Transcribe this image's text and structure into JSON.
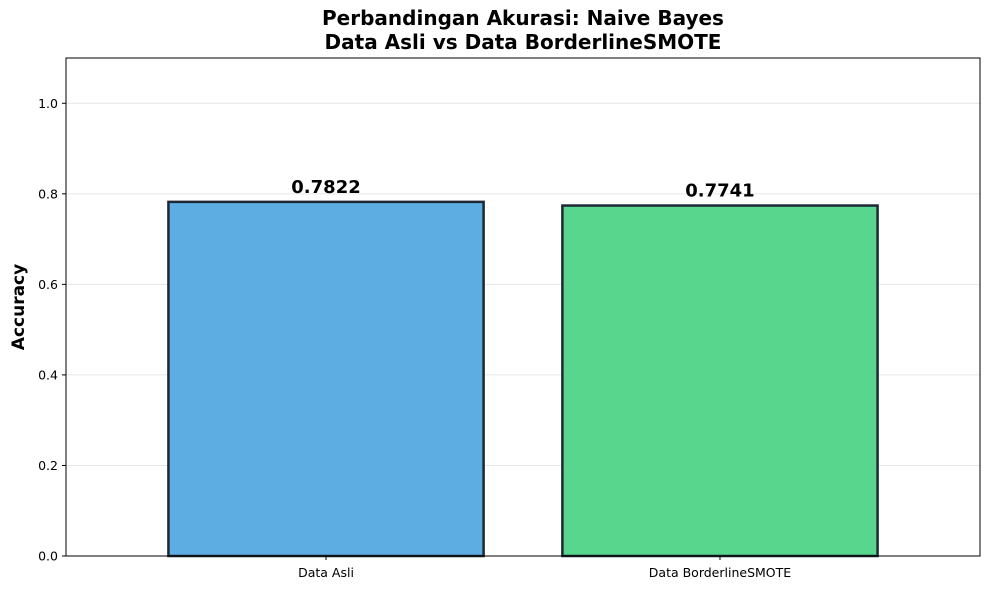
{
  "chart_data": {
    "type": "bar",
    "title_lines": [
      "Perbandingan Akurasi: Naive Bayes",
      "Data Asli vs Data BorderlineSMOTE"
    ],
    "xlabel": "",
    "ylabel": "Accuracy",
    "categories": [
      "Data Asli",
      "Data BorderlineSMOTE"
    ],
    "values": [
      0.7822,
      0.7741
    ],
    "value_labels": [
      "0.7822",
      "0.7741"
    ],
    "colors": [
      "#5dade2",
      "#58d68d"
    ],
    "edge_color": "#1c2833",
    "ylim": [
      0.0,
      1.1
    ],
    "yticks": [
      0.0,
      0.2,
      0.4,
      0.6,
      0.8,
      1.0
    ],
    "ytick_labels": [
      "0.0",
      "0.2",
      "0.4",
      "0.6",
      "0.8",
      "1.0"
    ],
    "grid": "y-axis, light",
    "legend": "none"
  }
}
